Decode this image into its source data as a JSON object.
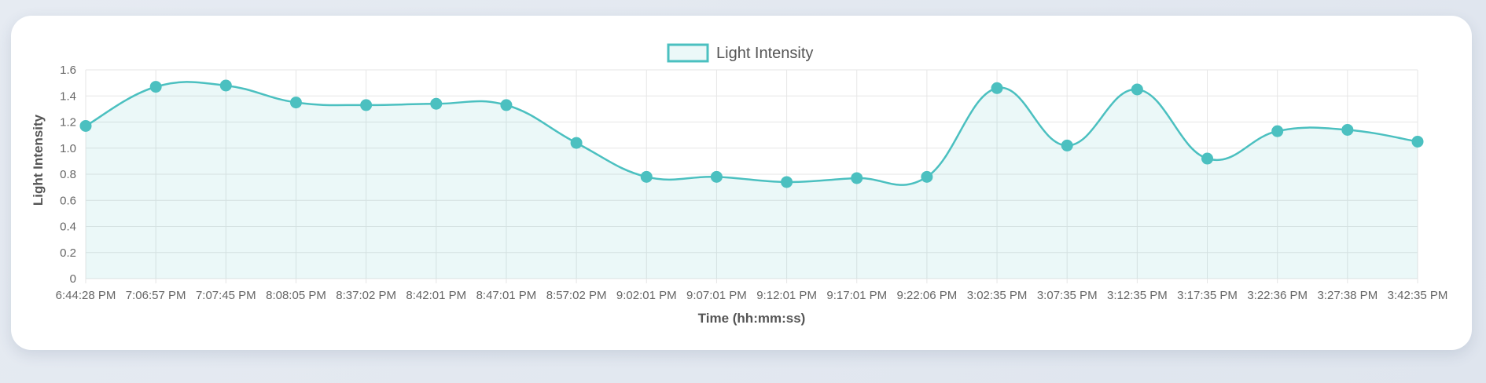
{
  "chart_data": {
    "type": "line",
    "title": "",
    "xlabel": "Time (hh:mm:ss)",
    "ylabel": "Light Intensity",
    "ylim": [
      0,
      1.6
    ],
    "y_ticks": [
      "0",
      "0.2",
      "0.4",
      "0.6",
      "0.8",
      "1.0",
      "1.2",
      "1.4",
      "1.6"
    ],
    "grid": true,
    "smooth": true,
    "fill": true,
    "legend_position": "top-center",
    "categories": [
      "6:44:28 PM",
      "7:06:57 PM",
      "7:07:45 PM",
      "8:08:05 PM",
      "8:37:02 PM",
      "8:42:01 PM",
      "8:47:01 PM",
      "8:57:02 PM",
      "9:02:01 PM",
      "9:07:01 PM",
      "9:12:01 PM",
      "9:17:01 PM",
      "9:22:06 PM",
      "3:02:35 PM",
      "3:07:35 PM",
      "3:12:35 PM",
      "3:17:35 PM",
      "3:22:36 PM",
      "3:27:38 PM",
      "3:42:35 PM"
    ],
    "series": [
      {
        "name": "Light Intensity",
        "color": "#4bc0c0",
        "fill_color": "rgba(75,192,192,0.11)",
        "values": [
          1.17,
          1.47,
          1.48,
          1.35,
          1.33,
          1.34,
          1.33,
          1.04,
          0.78,
          0.78,
          0.74,
          0.77,
          0.78,
          1.46,
          1.02,
          1.45,
          0.92,
          1.13,
          1.14,
          1.05
        ]
      }
    ]
  }
}
